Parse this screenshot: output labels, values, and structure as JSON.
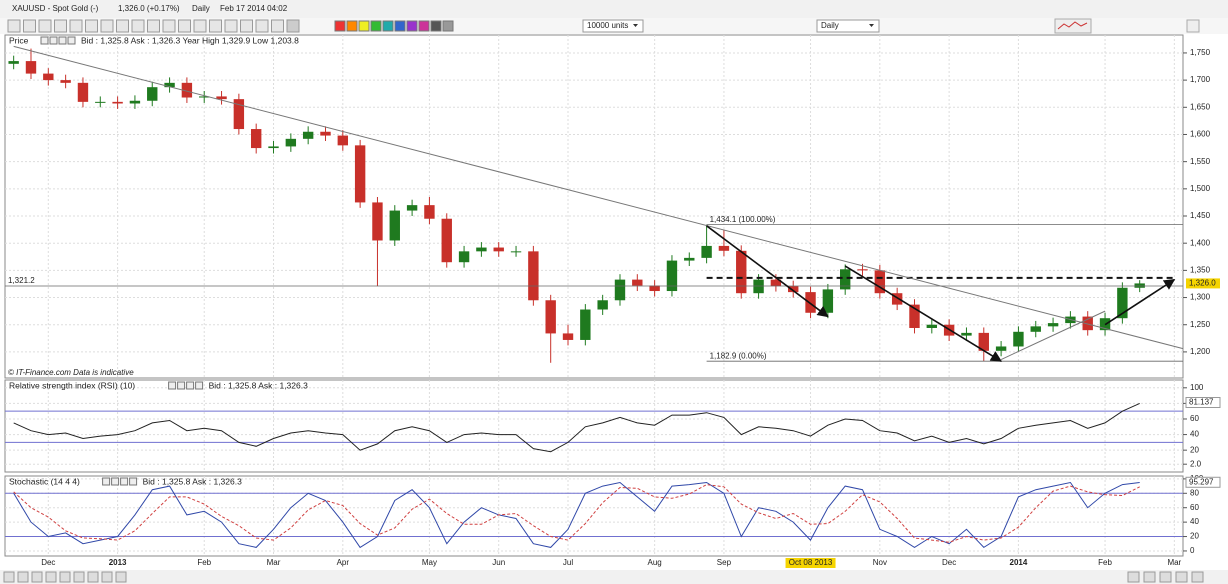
{
  "toolbar": {
    "title": "XAUUSD - Spot Gold (-)",
    "price": "1,326.0 (+0.17%)",
    "period": "Daily",
    "timestamp": "Feb 17 2014 04:02",
    "units_select": "10000 units",
    "period_select": "Daily"
  },
  "chart_data": [
    {
      "type": "candlestick",
      "title": "Price",
      "info": "Bid : 1,325.8 Ask : 1,326.3 Year High 1,329.9 Low 1,203.8",
      "note": "© IT-Finance.com  Data is indicative",
      "categories": [
        null,
        null,
        "Dec",
        null,
        null,
        null,
        "2013",
        null,
        null,
        null,
        null,
        "Feb",
        null,
        null,
        null,
        "Mar",
        null,
        null,
        null,
        "Apr",
        null,
        null,
        null,
        null,
        "May",
        null,
        null,
        null,
        "Jun",
        null,
        null,
        null,
        "Jul",
        null,
        null,
        null,
        null,
        "Aug",
        null,
        null,
        null,
        "Sep",
        null,
        null,
        null,
        null,
        "Oct 08 2013",
        null,
        null,
        null,
        "Nov",
        null,
        null,
        null,
        "Dec",
        null,
        null,
        null,
        "2014",
        null,
        null,
        null,
        null,
        "Feb",
        null,
        null,
        null,
        "Mar"
      ],
      "open": [
        1730,
        1735,
        1712,
        1700,
        1695,
        1660,
        1660,
        1657,
        1662,
        1687,
        1695,
        1668,
        1670,
        1665,
        1610,
        1575,
        1578,
        1592,
        1605,
        1598,
        1580,
        1475,
        1405,
        1460,
        1470,
        1445,
        1365,
        1385,
        1392,
        1385,
        1385,
        1295,
        1234,
        1222,
        1278,
        1295,
        1333,
        1322,
        1312,
        1368,
        1373,
        1395,
        1386,
        1308,
        1333,
        1321,
        1310,
        1272,
        1315,
        1352,
        1350,
        1308,
        1287,
        1244,
        1250,
        1230,
        1235,
        1202,
        1210,
        1237,
        1247,
        1253,
        1265,
        1240,
        1262,
        1318,
        null,
        null
      ],
      "high": [
        1745,
        1758,
        1722,
        1710,
        1705,
        1670,
        1670,
        1672,
        1697,
        1705,
        1705,
        1680,
        1680,
        1675,
        1620,
        1588,
        1602,
        1615,
        1615,
        1608,
        1590,
        1485,
        1470,
        1480,
        1485,
        1455,
        1395,
        1402,
        1402,
        1395,
        1395,
        1305,
        1250,
        1288,
        1305,
        1343,
        1343,
        1332,
        1378,
        1383,
        1434,
        1425,
        1396,
        1343,
        1343,
        1331,
        1320,
        1325,
        1361,
        1362,
        1360,
        1318,
        1297,
        1260,
        1260,
        1245,
        1245,
        1220,
        1247,
        1257,
        1263,
        1275,
        1275,
        1272,
        1328,
        1332,
        null,
        null
      ],
      "low": [
        1720,
        1702,
        1690,
        1685,
        1650,
        1650,
        1647,
        1647,
        1652,
        1677,
        1658,
        1658,
        1655,
        1600,
        1565,
        1565,
        1568,
        1582,
        1588,
        1570,
        1465,
        1321,
        1395,
        1450,
        1435,
        1355,
        1355,
        1375,
        1375,
        1375,
        1285,
        1180,
        1212,
        1212,
        1268,
        1285,
        1312,
        1302,
        1302,
        1358,
        1363,
        1376,
        1298,
        1298,
        1311,
        1300,
        1262,
        1262,
        1305,
        1340,
        1298,
        1277,
        1234,
        1234,
        1220,
        1220,
        1183,
        1192,
        1200,
        1227,
        1237,
        1243,
        1230,
        1230,
        1252,
        1310,
        null,
        null
      ],
      "close": [
        1735,
        1712,
        1700,
        1695,
        1660,
        1660,
        1657,
        1662,
        1687,
        1695,
        1668,
        1670,
        1665,
        1610,
        1575,
        1578,
        1592,
        1605,
        1598,
        1580,
        1475,
        1405,
        1460,
        1470,
        1445,
        1365,
        1385,
        1392,
        1385,
        1385,
        1295,
        1234,
        1222,
        1278,
        1295,
        1333,
        1322,
        1312,
        1368,
        1373,
        1395,
        1386,
        1308,
        1333,
        1321,
        1310,
        1272,
        1315,
        1352,
        1350,
        1308,
        1287,
        1244,
        1250,
        1230,
        1235,
        1202,
        1210,
        1237,
        1247,
        1253,
        1265,
        1240,
        1262,
        1318,
        1326,
        null,
        null
      ],
      "up_color": "#1f7a1f",
      "down_color": "#c8302a",
      "ylim": [
        1152,
        1783
      ],
      "yticks": [
        {
          "value": 1200,
          "label": "1,200"
        },
        {
          "value": 1250,
          "label": "1,250"
        },
        {
          "value": 1300,
          "label": "1,300"
        },
        {
          "value": 1350,
          "label": "1,350"
        },
        {
          "value": 1400,
          "label": "1,400"
        },
        {
          "value": 1450,
          "label": "1,450"
        },
        {
          "value": 1500,
          "label": "1,500"
        },
        {
          "value": 1550,
          "label": "1,550"
        },
        {
          "value": 1600,
          "label": "1,600"
        },
        {
          "value": 1650,
          "label": "1,650"
        },
        {
          "value": 1700,
          "label": "1,700"
        },
        {
          "value": 1750,
          "label": "1,750"
        }
      ],
      "grid": true,
      "last": {
        "value": 1326.0,
        "label": "1,326.0"
      },
      "levels": [
        {
          "value": 1321.2,
          "label": "1,321.2",
          "from": 0,
          "style": "solid"
        },
        {
          "value": 1434.1,
          "label": "1,434.1 (100.00%)",
          "from": 40,
          "style": "solid"
        },
        {
          "value": 1182.9,
          "label": "1,182.9 (0.00%)",
          "from": 40,
          "style": "solid"
        },
        {
          "value": 1336.2,
          "from": 40,
          "style": "dashed"
        }
      ],
      "trendlines": [
        {
          "from": [
            0,
            1762
          ],
          "to": [
            67.5,
            1206
          ],
          "arrow": false
        },
        {
          "from": [
            40,
            1432
          ],
          "to": [
            47,
            1265
          ],
          "arrow": true
        },
        {
          "from": [
            48,
            1358
          ],
          "to": [
            57,
            1183
          ],
          "arrow": true
        },
        {
          "from": [
            57,
            1186
          ],
          "to": [
            63,
            1275
          ],
          "arrow": false
        },
        {
          "from": [
            63,
            1250
          ],
          "to": [
            67,
            1333
          ],
          "arrow": true
        }
      ]
    },
    {
      "type": "line",
      "title": "Relative strength index (RSI) (10)",
      "info": "Bid : 1,325.8 Ask : 1,326.3",
      "series": [
        {
          "name": "RSI",
          "color": "#222222",
          "values": [
            55,
            45,
            40,
            42,
            35,
            38,
            40,
            45,
            55,
            58,
            45,
            48,
            45,
            30,
            25,
            35,
            42,
            45,
            42,
            40,
            20,
            28,
            45,
            50,
            45,
            30,
            40,
            42,
            40,
            40,
            22,
            18,
            30,
            50,
            55,
            62,
            55,
            52,
            65,
            65,
            68,
            62,
            40,
            50,
            48,
            45,
            38,
            52,
            60,
            58,
            45,
            42,
            32,
            38,
            30,
            35,
            28,
            35,
            48,
            52,
            55,
            58,
            48,
            55,
            70,
            80,
            null,
            null
          ]
        }
      ],
      "ylim": [
        -8,
        110
      ],
      "yticks": [
        {
          "value": 2,
          "label": "2.0"
        },
        20,
        40,
        60,
        80,
        100
      ],
      "bands": [
        30,
        70
      ],
      "band_color": "#7070d0",
      "grid": true,
      "last": 81.137
    },
    {
      "type": "line",
      "title": "Stochastic (14 4 4)",
      "info": "Bid : 1,325.8 Ask : 1,326.3",
      "series": [
        {
          "name": "%K",
          "color": "#3048a8",
          "values": [
            80,
            40,
            20,
            25,
            10,
            15,
            20,
            50,
            85,
            90,
            50,
            55,
            40,
            10,
            5,
            30,
            60,
            80,
            70,
            40,
            5,
            20,
            70,
            85,
            60,
            10,
            40,
            60,
            50,
            45,
            10,
            5,
            30,
            80,
            90,
            95,
            75,
            55,
            90,
            92,
            95,
            80,
            20,
            60,
            55,
            40,
            15,
            60,
            90,
            85,
            30,
            20,
            5,
            20,
            10,
            30,
            5,
            20,
            75,
            85,
            90,
            95,
            60,
            80,
            92,
            95,
            null,
            null
          ]
        },
        {
          "name": "%D",
          "color": "#d04040",
          "dashed": true,
          "values": [
            82,
            60,
            47,
            28,
            18,
            17,
            15,
            28,
            52,
            75,
            75,
            65,
            48,
            35,
            18,
            15,
            32,
            57,
            70,
            63,
            38,
            22,
            32,
            58,
            72,
            52,
            37,
            37,
            50,
            52,
            35,
            20,
            15,
            38,
            67,
            88,
            87,
            75,
            73,
            79,
            92,
            89,
            65,
            53,
            45,
            52,
            37,
            38,
            55,
            78,
            68,
            45,
            18,
            15,
            12,
            20,
            15,
            18,
            33,
            60,
            83,
            90,
            82,
            78,
            77,
            89,
            null,
            null
          ]
        }
      ],
      "ylim": [
        -7,
        104
      ],
      "yticks": [
        0,
        20,
        40,
        60,
        80,
        100
      ],
      "bands": [
        20,
        80
      ],
      "band_color": "#7070d0",
      "grid": true,
      "last": 95.297
    }
  ]
}
